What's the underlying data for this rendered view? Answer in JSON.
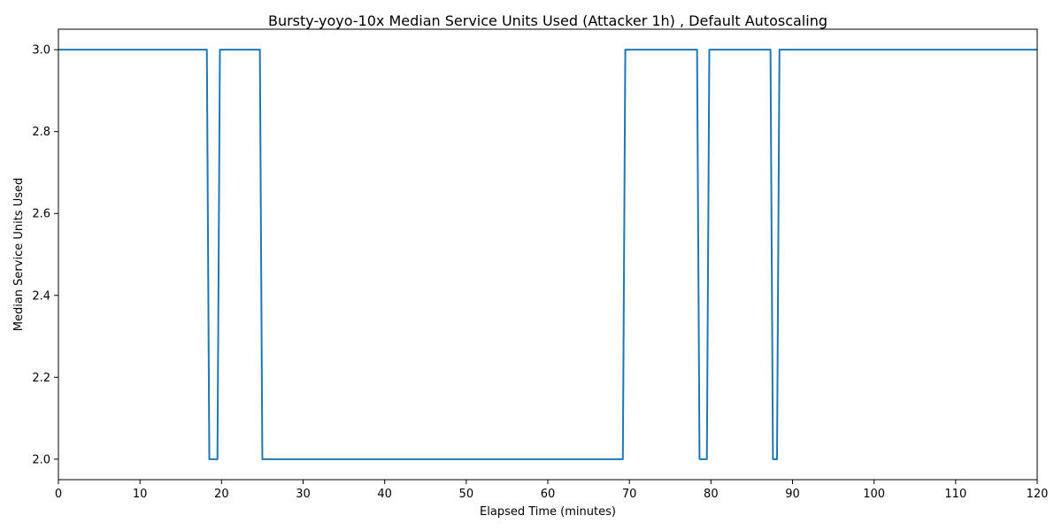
{
  "chart_data": {
    "type": "line",
    "title": "Bursty-yoyo-10x Median Service Units Used (Attacker 1h) , Default Autoscaling",
    "xlabel": "Elapsed Time (minutes)",
    "ylabel": "Median Service Units Used",
    "xlim": [
      0,
      120
    ],
    "ylim": [
      1.95,
      3.05
    ],
    "xticks": [
      0,
      10,
      20,
      30,
      40,
      50,
      60,
      70,
      80,
      90,
      100,
      110,
      120
    ],
    "xtick_labels": [
      "0",
      "10",
      "20",
      "30",
      "40",
      "50",
      "60",
      "70",
      "80",
      "90",
      "100",
      "110",
      "120"
    ],
    "yticks": [
      2.0,
      2.2,
      2.4,
      2.6,
      2.8,
      3.0
    ],
    "ytick_labels": [
      "2.0",
      "2.2",
      "2.4",
      "2.6",
      "2.8",
      "3.0"
    ],
    "grid": false,
    "legend": "none",
    "color": "#1f77b4",
    "series": [
      {
        "x": [
          0,
          18.2,
          18.5,
          19.5,
          19.8,
          24.7,
          25.0,
          69.2,
          69.5,
          78.3,
          78.6,
          79.5,
          79.8,
          87.3,
          87.6,
          88.1,
          88.4,
          120
        ],
        "values": [
          3.0,
          3.0,
          2.0,
          2.0,
          3.0,
          3.0,
          2.0,
          2.0,
          3.0,
          3.0,
          2.0,
          2.0,
          3.0,
          3.0,
          2.0,
          2.0,
          3.0,
          3.0
        ]
      }
    ]
  }
}
